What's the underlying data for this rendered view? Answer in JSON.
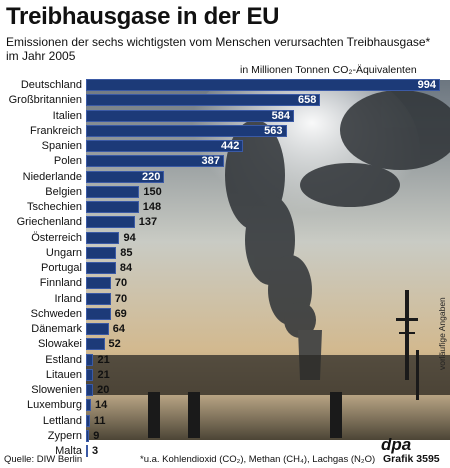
{
  "title": "Treibhausgase in der EU",
  "subtitle": "Emissionen der sechs wichtigsten vom Menschen verursachten Treibhausgase* im Jahr 2005",
  "unit_label": "in Millionen Tonnen CO₂-Äquivalenten",
  "side_note": "vorläufige Angaben",
  "footer": {
    "source": "Quelle: DIW Berlin",
    "footnote": "*u.a. Kohlendioxid (CO₂), Methan (CH₄), Lachgas (N₂O)",
    "brand": "dpa",
    "graphic_id": "Grafik 3595"
  },
  "colors": {
    "bar": "#1c3a78",
    "bar_edge": "#3b5aa5",
    "text": "#111111"
  },
  "chart_data": {
    "type": "bar",
    "orientation": "horizontal",
    "title": "Treibhausgase in der EU",
    "categories": [
      "Deutschland",
      "Großbritannien",
      "Italien",
      "Frankreich",
      "Spanien",
      "Polen",
      "Niederlande",
      "Belgien",
      "Tschechien",
      "Griechenland",
      "Österreich",
      "Ungarn",
      "Portugal",
      "Finnland",
      "Irland",
      "Schweden",
      "Dänemark",
      "Slowakei",
      "Estland",
      "Litauen",
      "Slowenien",
      "Luxemburg",
      "Lettland",
      "Zypern",
      "Malta"
    ],
    "values": [
      994,
      658,
      584,
      563,
      442,
      387,
      220,
      150,
      148,
      137,
      94,
      85,
      84,
      70,
      70,
      69,
      64,
      52,
      21,
      21,
      20,
      14,
      11,
      9,
      3
    ],
    "xlabel": "",
    "ylabel": "",
    "xlim": [
      0,
      994
    ]
  }
}
